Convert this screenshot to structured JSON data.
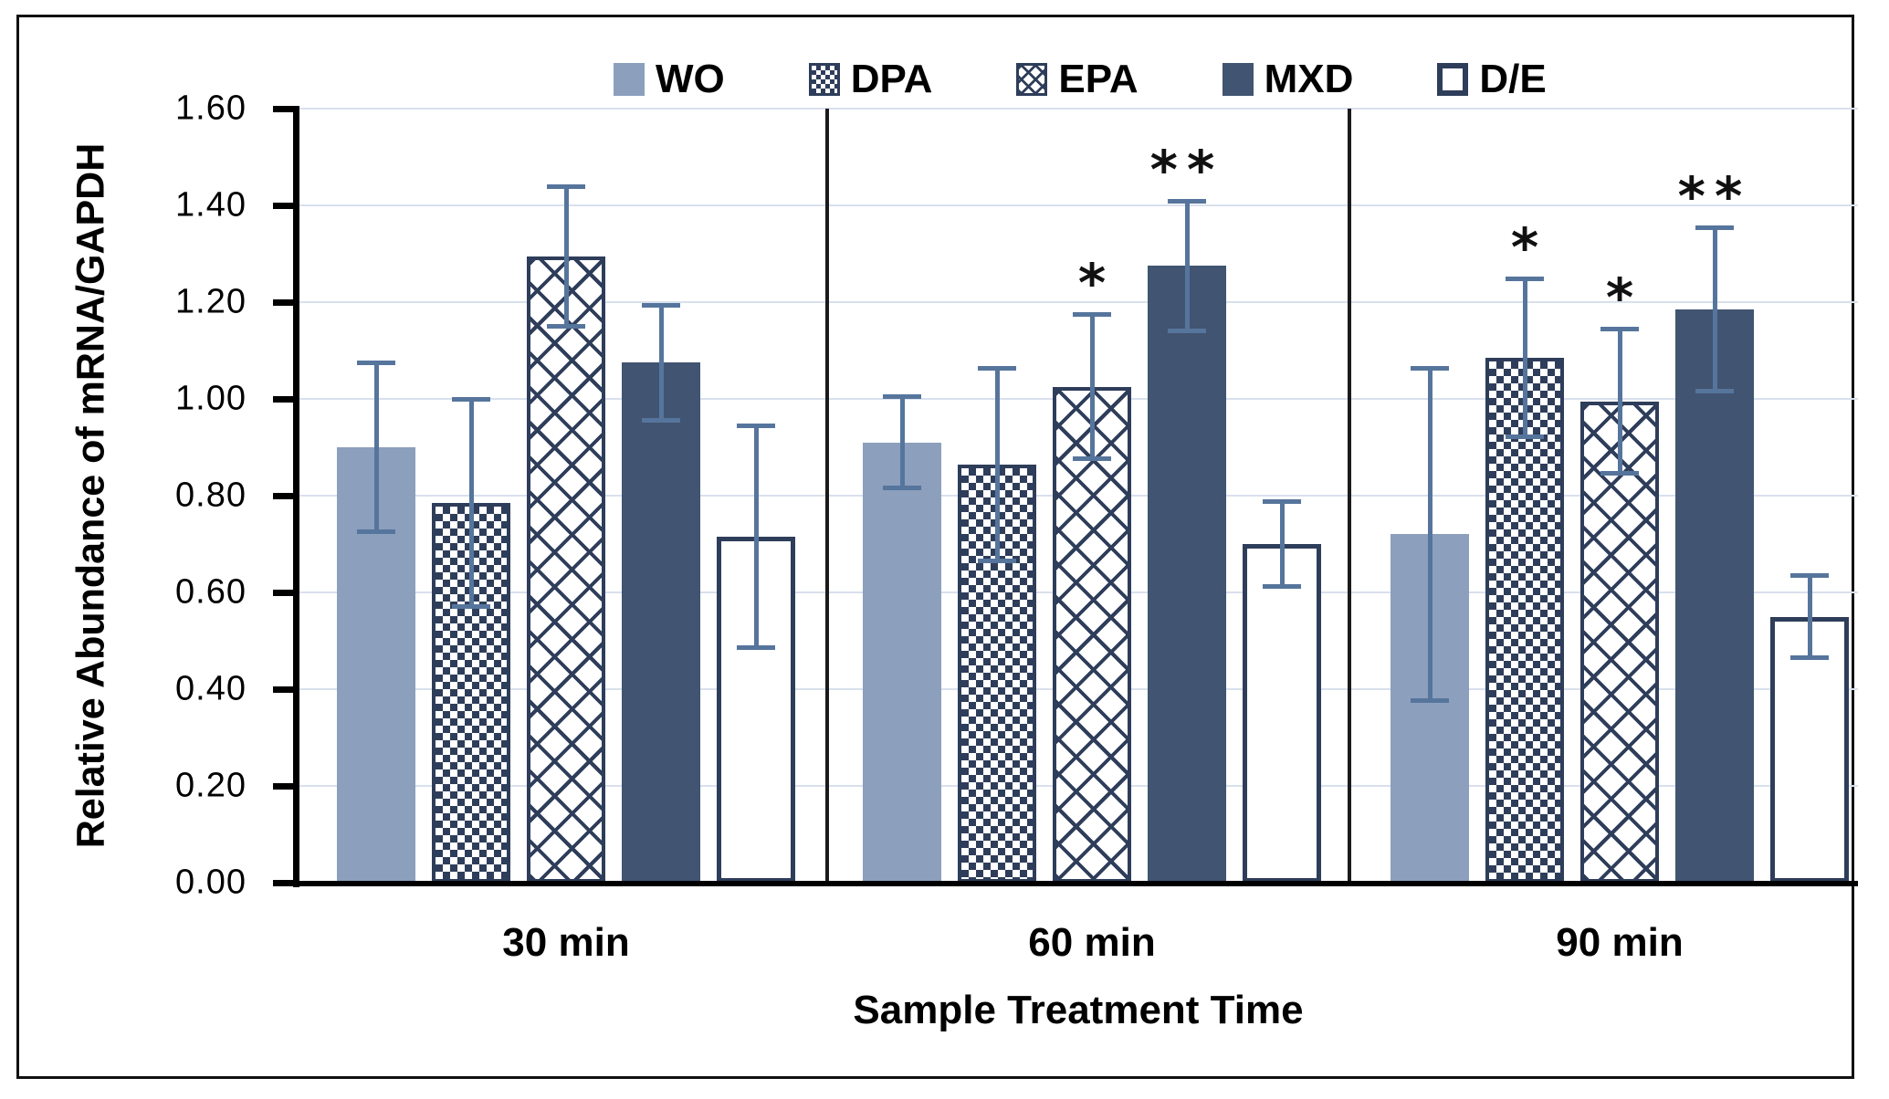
{
  "chart_data": {
    "type": "bar",
    "title": "",
    "xlabel": "Sample Treatment Time",
    "ylabel": "Relative Abundance of mRNA/GAPDH",
    "ylim": [
      0,
      1.6
    ],
    "ytick_step": 0.2,
    "ytick_labels": [
      "0.00",
      "0.20",
      "0.40",
      "0.60",
      "0.80",
      "1.00",
      "1.20",
      "1.40",
      "1.60"
    ],
    "categories": [
      "30 min",
      "60 min",
      "90 min"
    ],
    "grid": true,
    "legend_position": "top",
    "error_bars": true,
    "series": [
      {
        "name": "WO",
        "style": "solid-light",
        "values": [
          0.9,
          0.91,
          0.72
        ],
        "errors": [
          0.175,
          0.095,
          0.345
        ],
        "significance": [
          "",
          "",
          ""
        ]
      },
      {
        "name": "DPA",
        "style": "checker",
        "values": [
          0.785,
          0.865,
          1.085
        ],
        "errors": [
          0.215,
          0.2,
          0.165
        ],
        "significance": [
          "",
          "",
          "*"
        ]
      },
      {
        "name": "EPA",
        "style": "lattice",
        "values": [
          1.295,
          1.025,
          0.995
        ],
        "errors": [
          0.145,
          0.15,
          0.15
        ],
        "significance": [
          "",
          "*",
          "*"
        ]
      },
      {
        "name": "MXD",
        "style": "solid-dark",
        "values": [
          1.075,
          1.275,
          1.185
        ],
        "errors": [
          0.12,
          0.135,
          0.17
        ],
        "significance": [
          "",
          "**",
          "**"
        ]
      },
      {
        "name": "D/E",
        "style": "outline",
        "values": [
          0.715,
          0.7,
          0.55
        ],
        "errors": [
          0.23,
          0.088,
          0.085
        ],
        "significance": [
          "",
          "",
          ""
        ]
      }
    ]
  },
  "colors": {
    "wo_fill": "#8c9fbd",
    "mxd_fill": "#415471",
    "pattern_navy": "#2e3d5a",
    "error_bar": "#56759c",
    "gridline": "#d9e0ed",
    "axis": "#000000",
    "background": "#ffffff"
  }
}
